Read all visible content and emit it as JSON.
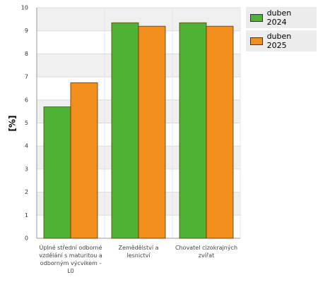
{
  "chart_data": {
    "type": "bar",
    "y_label": "[%]",
    "categories": [
      "Úplné střední odborné vzdělání s maturitou a odborným výcvikem - L0",
      "Zemědělství a lesnictví",
      "Chovatel cizokrajných zvířat"
    ],
    "series": [
      {
        "name": "duben 2024",
        "color": "#50b235",
        "values": [
          5.7,
          9.35,
          9.35
        ]
      },
      {
        "name": "duben 2025",
        "color": "#f28e1c",
        "values": [
          6.75,
          9.2,
          9.2
        ]
      }
    ],
    "ylim": [
      0,
      10
    ],
    "yticks": [
      0,
      1,
      2,
      3,
      4,
      5,
      6,
      7,
      8,
      9,
      10
    ],
    "grid": true,
    "legend": "top-right"
  }
}
